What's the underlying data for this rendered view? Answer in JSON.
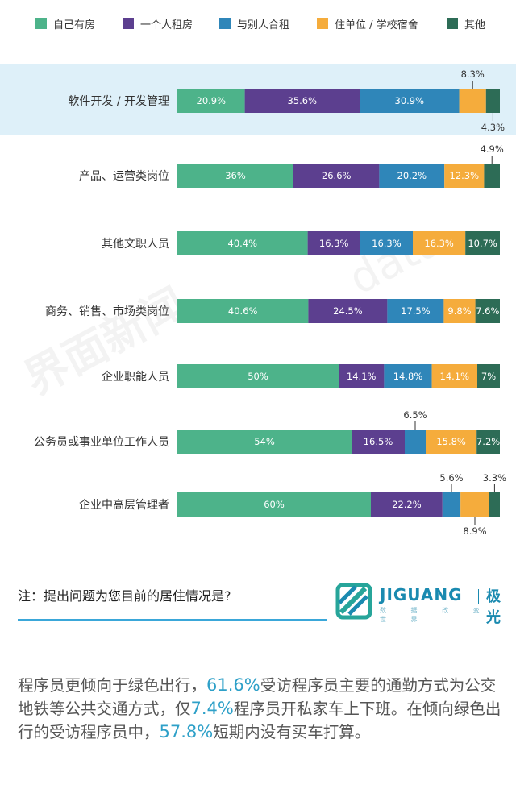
{
  "colors": {
    "series": [
      "#4db38a",
      "#5c3f8f",
      "#2f86b9",
      "#f5ac3c",
      "#2d6c56"
    ],
    "highlight_row": "#def0f9",
    "accent": "#3aa7d9"
  },
  "watermark": {
    "left_text": "界面新闻",
    "right_text": "data"
  },
  "chart_data": {
    "type": "bar",
    "stacked": true,
    "orientation": "horizontal",
    "unit": "%",
    "categories": [
      "软件开发 / 开发管理",
      "产品、运营类岗位",
      "其他文职人员",
      "商务、销售、市场类岗位",
      "企业职能人员",
      "公务员或事业单位工作人员",
      "企业中高层管理者"
    ],
    "highlighted_category": "软件开发 / 开发管理",
    "series": [
      {
        "name": "自己有房",
        "values": [
          20.9,
          36,
          40.4,
          40.6,
          50,
          54,
          60
        ]
      },
      {
        "name": "一个人租房",
        "values": [
          35.6,
          26.6,
          16.3,
          24.5,
          14.1,
          16.5,
          22.2
        ]
      },
      {
        "name": "与别人合租",
        "values": [
          30.9,
          20.2,
          16.3,
          17.5,
          14.8,
          6.5,
          5.6
        ]
      },
      {
        "name": "住单位 / 学校宿舍",
        "values": [
          8.3,
          12.3,
          16.3,
          9.8,
          14.1,
          15.8,
          8.9
        ]
      },
      {
        "name": "其他",
        "values": [
          4.3,
          4.9,
          10.7,
          7.6,
          7,
          7.2,
          3.3
        ]
      }
    ],
    "value_labels": [
      [
        "20.9%",
        "35.6%",
        "30.9%",
        "8.3%",
        "4.3%"
      ],
      [
        "36%",
        "26.6%",
        "20.2%",
        "12.3%",
        "4.9%"
      ],
      [
        "40.4%",
        "16.3%",
        "16.3%",
        "16.3%",
        "10.7%"
      ],
      [
        "40.6%",
        "24.5%",
        "17.5%",
        "9.8%",
        "7.6%"
      ],
      [
        "50%",
        "14.1%",
        "14.8%",
        "14.1%",
        "7%"
      ],
      [
        "54%",
        "16.5%",
        "6.5%",
        "15.8%",
        "7.2%"
      ],
      [
        "60%",
        "22.2%",
        "5.6%",
        "8.9%",
        "3.3%"
      ]
    ],
    "callouts": [
      {
        "row": 0,
        "segment": 3,
        "position": "above"
      },
      {
        "row": 0,
        "segment": 4,
        "position": "below"
      },
      {
        "row": 1,
        "segment": 4,
        "position": "above"
      },
      {
        "row": 5,
        "segment": 2,
        "position": "above"
      },
      {
        "row": 6,
        "segment": 2,
        "position": "above"
      },
      {
        "row": 6,
        "segment": 3,
        "position": "below"
      },
      {
        "row": 6,
        "segment": 4,
        "position": "above"
      }
    ],
    "legend_position": "top",
    "grid": false
  },
  "note": "注：提出问题为您目前的居住情况是?",
  "logo": {
    "wordmark": "JIGUANG",
    "cn": "极光",
    "tagline": "数 据 改 变 世 界"
  },
  "paragraph": [
    {
      "text": "程序员更倾向于绿色出行，",
      "hl": false
    },
    {
      "text": "61.6%",
      "hl": true
    },
    {
      "text": "受访程序员主要的通勤方式为公交地铁等公共交通方式，仅",
      "hl": false
    },
    {
      "text": "7.4%",
      "hl": true
    },
    {
      "text": "程序员开私家车上下班。在倾向绿色出行的受访程序员中，",
      "hl": false
    },
    {
      "text": "57.8%",
      "hl": true
    },
    {
      "text": "短期内没有买车打算。",
      "hl": false
    }
  ]
}
